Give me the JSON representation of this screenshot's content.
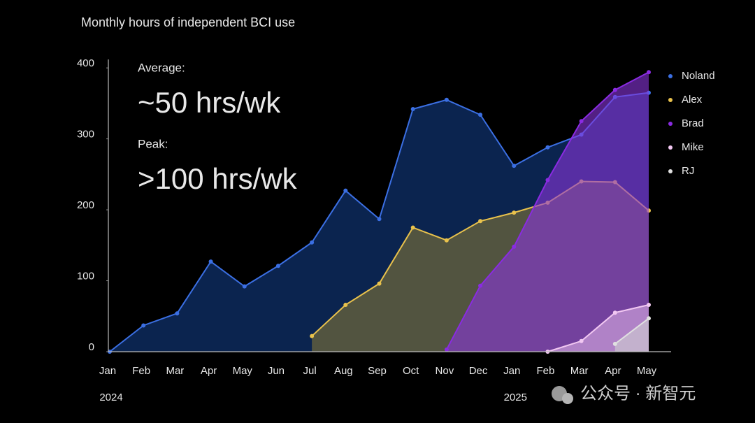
{
  "chart_data": {
    "type": "area",
    "title": "Monthly hours of independent BCI use",
    "annotations": [
      "Average:",
      "~50 hrs/wk",
      "Peak:",
      ">100 hrs/wk"
    ],
    "categories": [
      "Jan",
      "Feb",
      "Mar",
      "Apr",
      "May",
      "Jun",
      "Jul",
      "Aug",
      "Sep",
      "Oct",
      "Nov",
      "Dec",
      "Jan",
      "Feb",
      "Mar",
      "Apr",
      "May"
    ],
    "year_labels": [
      "2024",
      null,
      null,
      null,
      null,
      null,
      null,
      null,
      null,
      null,
      null,
      null,
      "2025",
      null,
      null,
      null,
      null
    ],
    "series": [
      {
        "name": "Noland",
        "color": "#3b6fe3",
        "fill": "#0b244f",
        "values": [
          0,
          37,
          54,
          127,
          92,
          121,
          154,
          227,
          187,
          342,
          355,
          334,
          262,
          288,
          306,
          359,
          365
        ]
      },
      {
        "name": "Alex",
        "color": "#e9c24c",
        "fill": "#525440",
        "values": [
          null,
          null,
          null,
          null,
          null,
          null,
          22,
          66,
          96,
          175,
          157,
          184,
          196,
          210,
          240,
          239,
          199
        ]
      },
      {
        "name": "Brad",
        "color": "#8a2be2",
        "fill": "#8a36dc99",
        "values": [
          null,
          null,
          null,
          null,
          null,
          null,
          null,
          null,
          null,
          null,
          3,
          93,
          148,
          242,
          325,
          369,
          394
        ]
      },
      {
        "name": "Mike",
        "color": "#f2c8f2",
        "fill": "#d9aee299",
        "values": [
          null,
          null,
          null,
          null,
          null,
          null,
          null,
          null,
          null,
          null,
          null,
          null,
          null,
          0,
          15,
          55,
          66
        ]
      },
      {
        "name": "RJ",
        "color": "#e0e0e0",
        "fill": "#d0d0d099",
        "values": [
          null,
          null,
          null,
          null,
          null,
          null,
          null,
          null,
          null,
          null,
          null,
          null,
          null,
          null,
          null,
          11,
          47
        ]
      }
    ],
    "ylim": [
      0,
      410
    ],
    "yticks": [
      0,
      100,
      200,
      300,
      400
    ],
    "legend": "right",
    "watermark": "公众号 · 新智元"
  }
}
